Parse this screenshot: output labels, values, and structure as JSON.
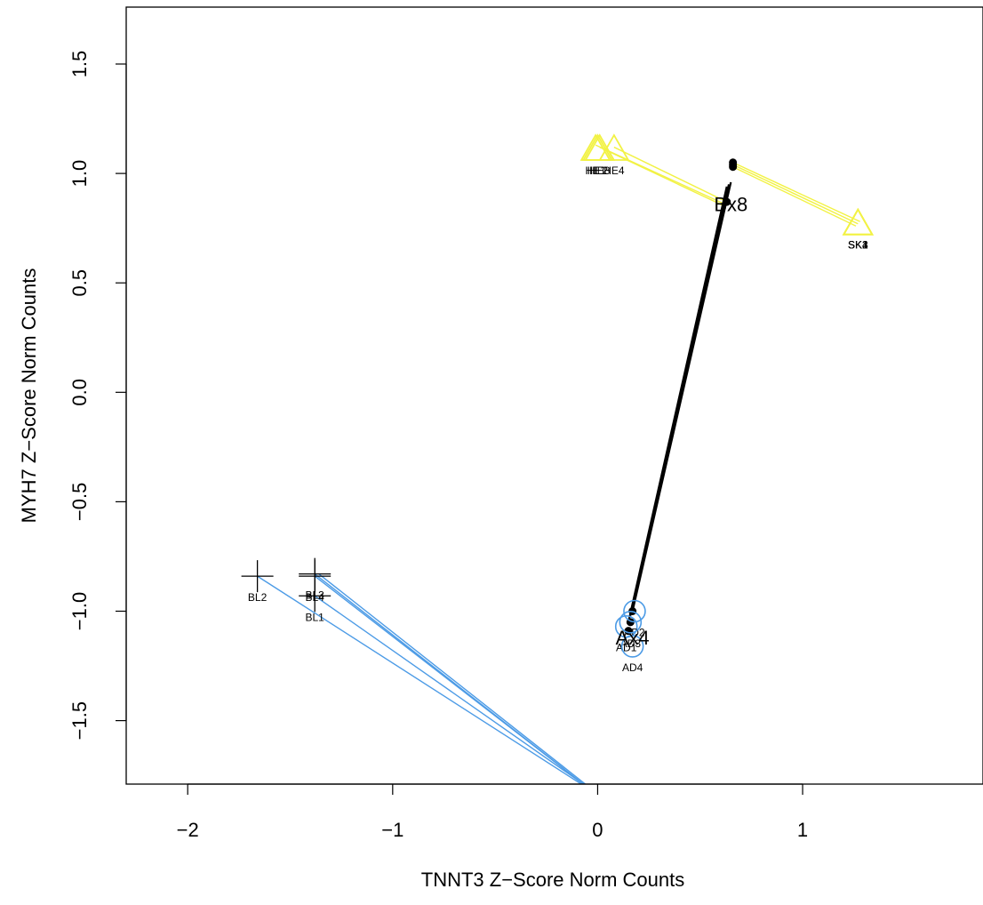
{
  "chart_data": {
    "type": "scatter",
    "title": "",
    "xlabel": "TNNT3 Z−Score Norm Counts",
    "ylabel": "MYH7 Z−Score Norm Counts",
    "xlim": [
      -2.3,
      1.88
    ],
    "ylim": [
      -1.79,
      1.76
    ],
    "x_ticks": [
      -2,
      -1,
      0,
      1
    ],
    "x_tick_labels": [
      "−2",
      "−1",
      "0",
      "1"
    ],
    "y_ticks": [
      -1.5,
      -1.0,
      -0.5,
      0.0,
      0.5,
      1.0,
      1.5
    ],
    "y_tick_labels": [
      "−1.5",
      "−1.0",
      "−0.5",
      "0.0",
      "0.5",
      "1.0",
      "1.5"
    ],
    "colors": {
      "blue": "#4c9be6",
      "yellow": "#f2f244",
      "black": "#000000"
    },
    "series": [
      {
        "marker": "plus",
        "color": "#000000",
        "points": [
          {
            "label": "BL1",
            "x": -1.38,
            "y": -0.93
          },
          {
            "label": "BL2",
            "x": -1.66,
            "y": -0.84
          },
          {
            "label": "BL3",
            "x": -1.38,
            "y": -0.83
          },
          {
            "label": "BL4",
            "x": -1.38,
            "y": -0.84
          }
        ]
      },
      {
        "marker": "circle",
        "color": "#4c9be6",
        "points": [
          {
            "label": "AD1",
            "x": 0.14,
            "y": -1.07
          },
          {
            "label": "AD2",
            "x": 0.18,
            "y": -1.0
          },
          {
            "label": "AD3",
            "x": 0.16,
            "y": -1.05
          },
          {
            "label": "AD4",
            "x": 0.17,
            "y": -1.16
          }
        ]
      },
      {
        "marker": "triangle",
        "color": "#f2f244",
        "points": [
          {
            "label": "HE1",
            "x": -0.01,
            "y": 1.11
          },
          {
            "label": "HE2",
            "x": 0.0,
            "y": 1.11
          },
          {
            "label": "HE3",
            "x": 0.01,
            "y": 1.11
          },
          {
            "label": "HE4",
            "x": 0.08,
            "y": 1.11
          }
        ]
      },
      {
        "marker": "triangle",
        "color": "#f2f244",
        "points": [
          {
            "label": "SK1",
            "x": 1.27,
            "y": 0.77
          },
          {
            "label": "SK2",
            "x": 1.27,
            "y": 0.77
          },
          {
            "label": "SK3",
            "x": 1.27,
            "y": 0.77
          },
          {
            "label": "SK4",
            "x": 1.27,
            "y": 0.77
          }
        ]
      }
    ],
    "centroids": [
      {
        "label": "Ax4",
        "x": 0.17,
        "y": -1.12
      },
      {
        "label": "Bx8",
        "x": 0.65,
        "y": 0.86
      }
    ],
    "black_dots": [
      {
        "x": 0.66,
        "y": 1.05
      },
      {
        "x": 0.66,
        "y": 1.04
      },
      {
        "x": 0.66,
        "y": 1.03
      },
      {
        "x": 0.63,
        "y": 0.87
      },
      {
        "x": 0.17,
        "y": -1.0
      },
      {
        "x": 0.16,
        "y": -1.05
      },
      {
        "x": 0.15,
        "y": -1.09
      }
    ],
    "segments": [
      {
        "color": "#4c9be6",
        "from": [
          -1.38,
          -0.83
        ],
        "to": [
          -0.07,
          -1.79
        ]
      },
      {
        "color": "#4c9be6",
        "from": [
          -1.38,
          -0.84
        ],
        "to": [
          -0.07,
          -1.79
        ]
      },
      {
        "color": "#4c9be6",
        "from": [
          -1.38,
          -0.93
        ],
        "to": [
          -0.07,
          -1.79
        ]
      },
      {
        "color": "#4c9be6",
        "from": [
          -1.66,
          -0.84
        ],
        "to": [
          -0.08,
          -1.79
        ]
      },
      {
        "color": "#4c9be6",
        "from": [
          -1.36,
          -0.83
        ],
        "to": [
          -0.06,
          -1.79
        ]
      },
      {
        "color": "#f2f244",
        "from": [
          -0.01,
          1.13
        ],
        "to": [
          0.62,
          0.86
        ]
      },
      {
        "color": "#f2f244",
        "from": [
          0.01,
          1.12
        ],
        "to": [
          0.62,
          0.85
        ]
      },
      {
        "color": "#f2f244",
        "from": [
          0.08,
          1.12
        ],
        "to": [
          0.63,
          0.87
        ]
      },
      {
        "color": "#f2f244",
        "from": [
          0.66,
          1.05
        ],
        "to": [
          1.28,
          0.78
        ]
      },
      {
        "color": "#f2f244",
        "from": [
          0.66,
          1.04
        ],
        "to": [
          1.27,
          0.77
        ]
      },
      {
        "color": "#f2f244",
        "from": [
          0.66,
          1.03
        ],
        "to": [
          1.26,
          0.76
        ]
      },
      {
        "color": "#000000",
        "from": [
          0.65,
          0.96
        ],
        "to": [
          0.17,
          -1.0
        ]
      },
      {
        "color": "#000000",
        "from": [
          0.64,
          0.95
        ],
        "to": [
          0.16,
          -1.02
        ]
      },
      {
        "color": "#000000",
        "from": [
          0.63,
          0.94
        ],
        "to": [
          0.15,
          -1.05
        ]
      }
    ]
  }
}
